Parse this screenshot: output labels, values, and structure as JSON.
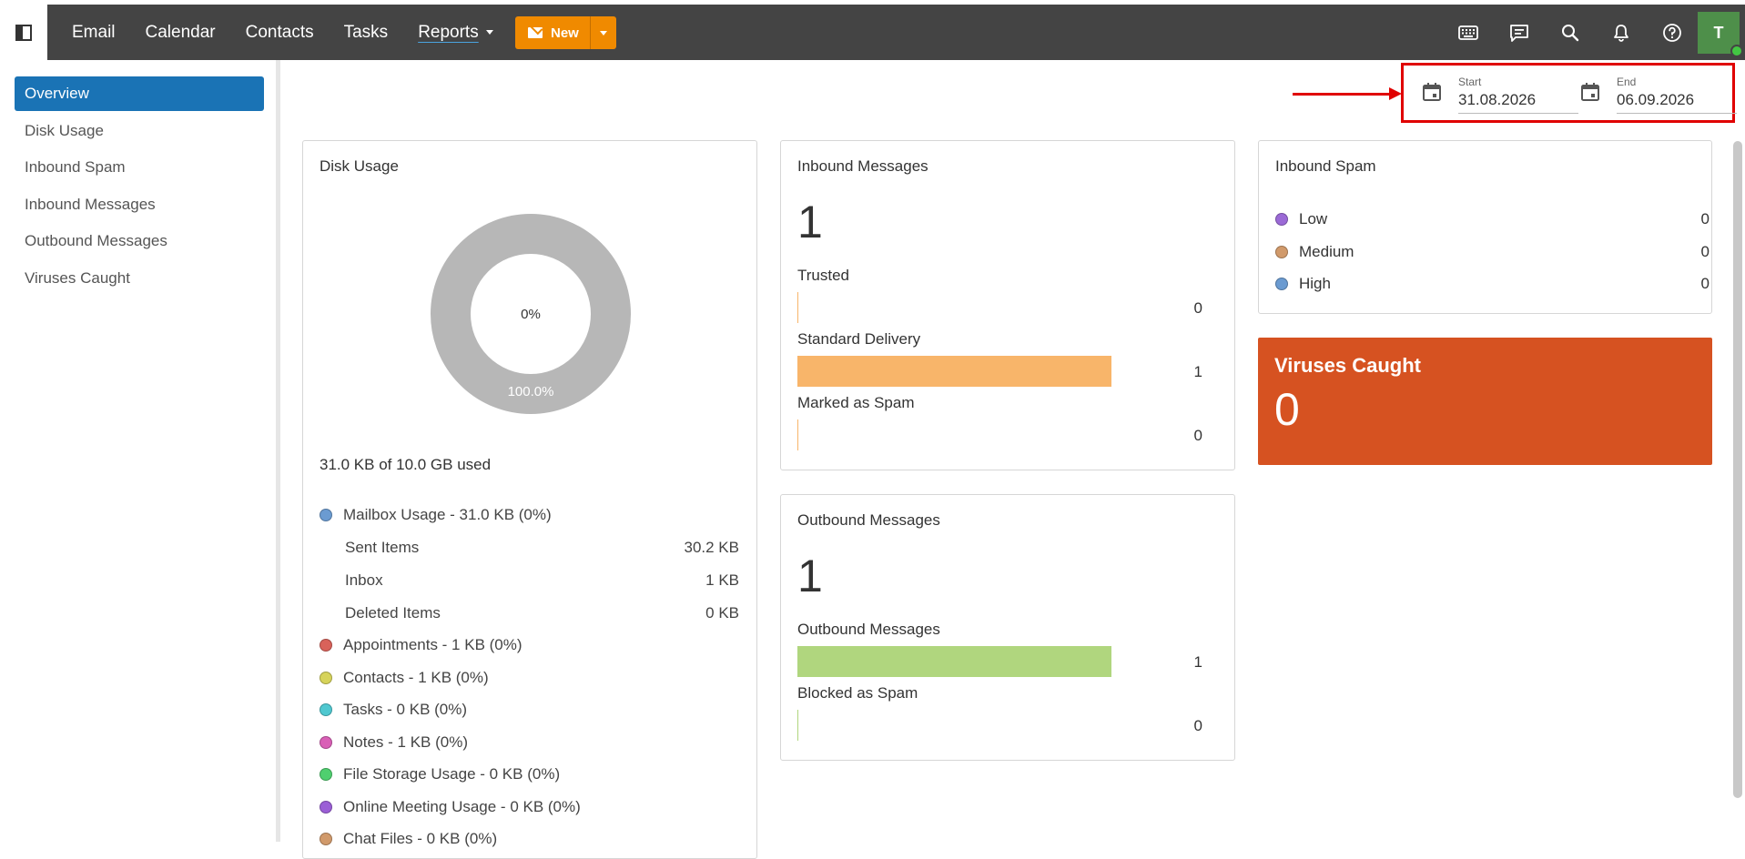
{
  "topbar": {
    "nav": [
      "Email",
      "Calendar",
      "Contacts",
      "Tasks",
      "Reports"
    ],
    "new_label": "New",
    "avatar_initial": "T"
  },
  "sidebar": {
    "items": [
      "Overview",
      "Disk Usage",
      "Inbound Spam",
      "Inbound Messages",
      "Outbound Messages",
      "Viruses Caught"
    ]
  },
  "date_range": {
    "start_label": "Start",
    "start_value": "31.08.2026",
    "end_label": "End",
    "end_value": "06.09.2026"
  },
  "disk_usage": {
    "title": "Disk Usage",
    "center_label": "0%",
    "ring_label": "100.0%",
    "used_percent": 0,
    "summary": "31.0 KB of 10.0 GB used",
    "mailbox": {
      "label": "Mailbox Usage - 31.0 KB (0%)",
      "color": "#6b9bd1"
    },
    "sub_items": [
      {
        "label": "Sent Items",
        "value": "30.2 KB"
      },
      {
        "label": "Inbox",
        "value": "1 KB"
      },
      {
        "label": "Deleted Items",
        "value": "0 KB"
      }
    ],
    "categories": [
      {
        "label": "Appointments - 1 KB (0%)",
        "color": "#d9625a"
      },
      {
        "label": "Contacts - 1 KB (0%)",
        "color": "#d6d35a"
      },
      {
        "label": "Tasks - 0 KB (0%)",
        "color": "#4fc8d0"
      },
      {
        "label": "Notes - 1 KB (0%)",
        "color": "#d95fb6"
      },
      {
        "label": "File Storage Usage - 0 KB (0%)",
        "color": "#4fcf6f"
      },
      {
        "label": "Online Meeting Usage - 0 KB (0%)",
        "color": "#9b5fd6"
      },
      {
        "label": "Chat Files - 0 KB (0%)",
        "color": "#d19a6b"
      }
    ]
  },
  "inbound_messages": {
    "title": "Inbound Messages",
    "total": "1",
    "color": "#f8b56a",
    "rows": [
      {
        "label": "Trusted",
        "value": "0",
        "fraction": 0
      },
      {
        "label": "Standard Delivery",
        "value": "1",
        "fraction": 1
      },
      {
        "label": "Marked as Spam",
        "value": "0",
        "fraction": 0
      }
    ]
  },
  "outbound_messages": {
    "title": "Outbound Messages",
    "total": "1",
    "color": "#b0d67e",
    "rows": [
      {
        "label": "Outbound Messages",
        "value": "1",
        "fraction": 1
      },
      {
        "label": "Blocked as Spam",
        "value": "0",
        "fraction": 0
      }
    ]
  },
  "inbound_spam": {
    "title": "Inbound Spam",
    "rows": [
      {
        "label": "Low",
        "value": "0",
        "color": "#9b6ad6"
      },
      {
        "label": "Medium",
        "value": "0",
        "color": "#d19a6b"
      },
      {
        "label": "High",
        "value": "0",
        "color": "#6b9bd1"
      }
    ]
  },
  "viruses": {
    "title": "Viruses Caught",
    "count": "0"
  }
}
